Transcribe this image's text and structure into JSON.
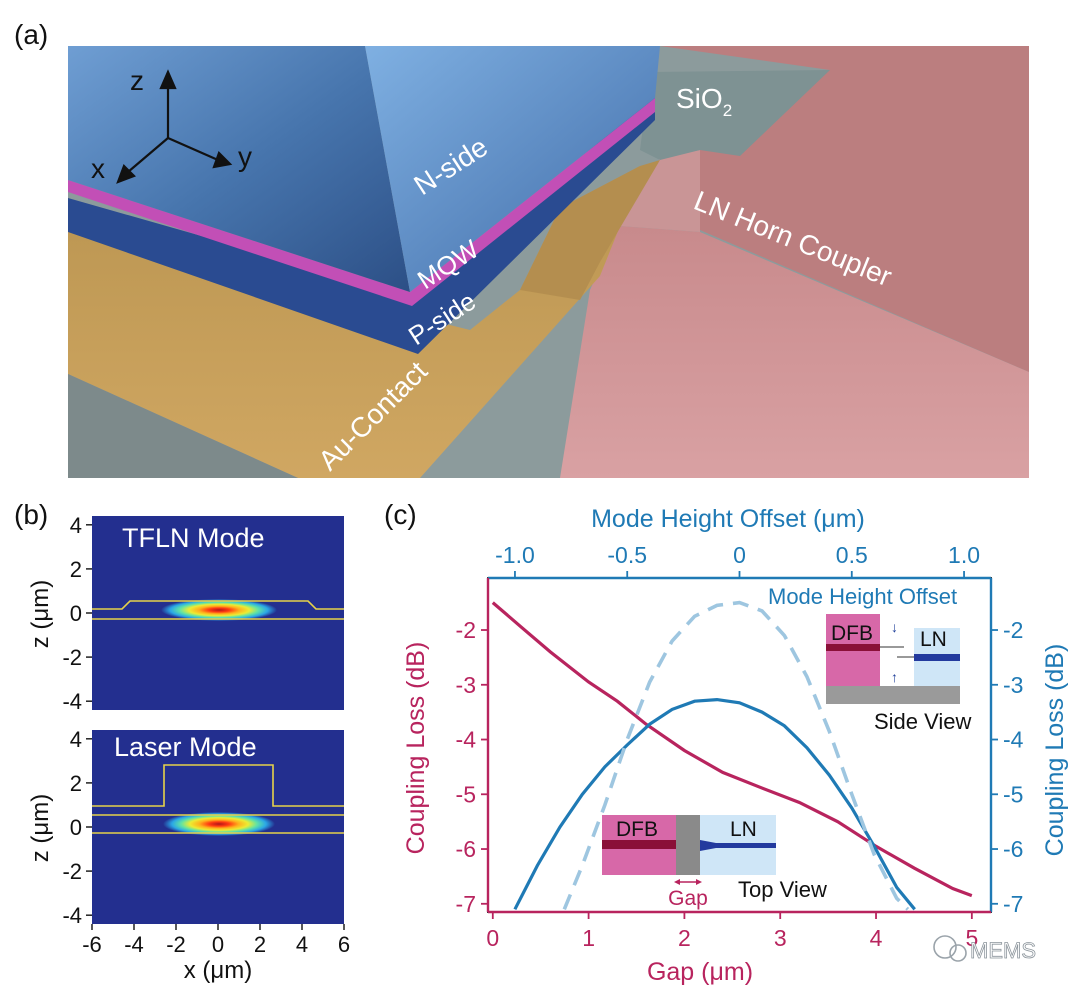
{
  "panels": {
    "a": {
      "label": "(a)",
      "axes": {
        "z": "z",
        "x": "x",
        "y": "y"
      },
      "layers": {
        "n_side": "N-side",
        "mqw": "MQW",
        "p_side": "P-side",
        "au_contact": "Au-Contact",
        "sio2": "SiO",
        "sio2_sub": "2",
        "ln_horn": "LN Horn Coupler"
      }
    },
    "b": {
      "label": "(b)",
      "top_title": "TFLN Mode",
      "bottom_title": "Laser Mode",
      "ylabel": "z (μm)",
      "xlabel": "x (μm)",
      "y_ticks": [
        "4",
        "2",
        "0",
        "-2",
        "-4"
      ],
      "x_ticks": [
        "-6",
        "-4",
        "-2",
        "0",
        "2",
        "4",
        "6"
      ]
    },
    "c": {
      "label": "(c)",
      "inset_side": {
        "dfb": "DFB",
        "ln": "LN",
        "caption": "Side View"
      },
      "inset_top": {
        "dfb": "DFB",
        "ln": "LN",
        "gap": "Gap",
        "caption": "Top View"
      },
      "watermark": "MEMS"
    }
  },
  "colors": {
    "gap_series": "#b8245e",
    "offset_series": "#1f7ab5",
    "offset_dashed": "#9ec6e0",
    "mode_background": "#232f8f",
    "waveguide_outline": "#e6d24a"
  },
  "chart_data": {
    "type": "line",
    "bottom_xlabel": "Gap (μm)",
    "top_xlabel": "Mode Height Offset (μm)",
    "left_ylabel": "Coupling Loss (dB)",
    "right_ylabel": "Coupling Loss (dB)",
    "bottom_xlim": [
      -0.05,
      5.2
    ],
    "top_xlim": [
      -1.12,
      1.12
    ],
    "ylim": [
      -7.15,
      -1.05
    ],
    "bottom_ticks": [
      "0",
      "1",
      "2",
      "3",
      "4",
      "5"
    ],
    "top_ticks": [
      "-1.0",
      "-0.5",
      "0",
      "0.5",
      "1.0"
    ],
    "left_ticks": [
      "-2",
      "-3",
      "-4",
      "-5",
      "-6",
      "-7"
    ],
    "right_ticks": [
      "-2",
      "-3",
      "-4",
      "-5",
      "-6",
      "-7"
    ],
    "series": [
      {
        "name": "Gap",
        "axis": "bottom",
        "style": "solid",
        "x": [
          0,
          0.3,
          0.6,
          1.0,
          1.3,
          1.6,
          2.0,
          2.4,
          2.8,
          3.2,
          3.6,
          4.0,
          4.4,
          4.8,
          5.0
        ],
        "y": [
          -1.5,
          -1.95,
          -2.4,
          -2.95,
          -3.3,
          -3.72,
          -4.2,
          -4.6,
          -4.88,
          -5.15,
          -5.5,
          -5.95,
          -6.35,
          -6.72,
          -6.85
        ]
      },
      {
        "name": "Mode Height Offset (solid)",
        "axis": "top",
        "style": "solid",
        "x": [
          -1.0,
          -0.9,
          -0.8,
          -0.7,
          -0.6,
          -0.5,
          -0.4,
          -0.3,
          -0.2,
          -0.1,
          0.0,
          0.1,
          0.2,
          0.3,
          0.4,
          0.5,
          0.6,
          0.7,
          0.78
        ],
        "y": [
          -7.1,
          -6.3,
          -5.6,
          -5.0,
          -4.5,
          -4.1,
          -3.72,
          -3.45,
          -3.3,
          -3.27,
          -3.33,
          -3.5,
          -3.75,
          -4.15,
          -4.65,
          -5.25,
          -5.95,
          -6.7,
          -7.1
        ]
      },
      {
        "name": "Mode Height Offset",
        "axis": "top",
        "style": "dashed",
        "x": [
          -0.78,
          -0.7,
          -0.6,
          -0.5,
          -0.4,
          -0.3,
          -0.2,
          -0.1,
          0.0,
          0.1,
          0.2,
          0.3,
          0.4,
          0.5,
          0.6,
          0.7,
          0.75
        ],
        "y": [
          -7.1,
          -6.3,
          -5.2,
          -4.0,
          -2.95,
          -2.2,
          -1.75,
          -1.55,
          -1.5,
          -1.65,
          -2.1,
          -2.85,
          -3.85,
          -5.0,
          -6.1,
          -6.9,
          -7.1
        ]
      }
    ]
  }
}
